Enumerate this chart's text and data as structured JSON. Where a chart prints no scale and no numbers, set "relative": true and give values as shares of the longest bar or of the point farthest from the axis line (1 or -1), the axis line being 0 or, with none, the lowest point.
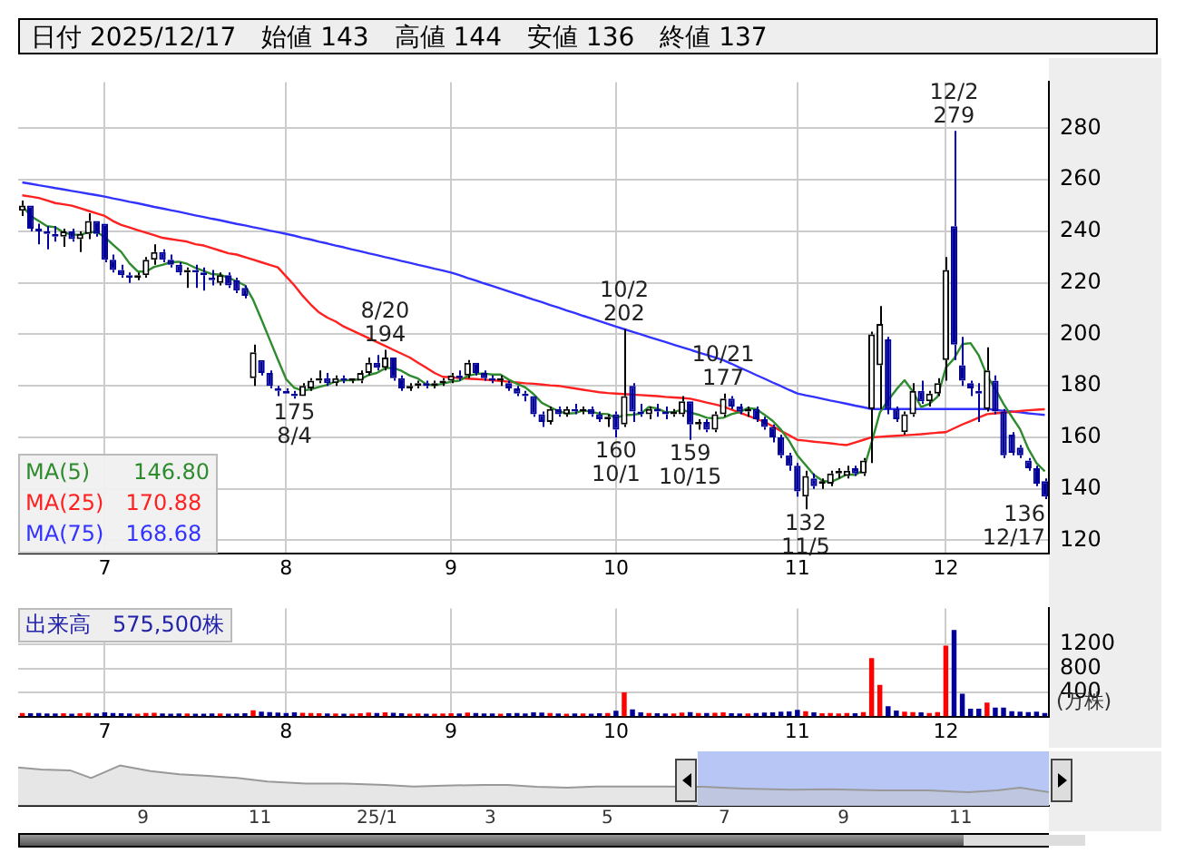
{
  "chart_data": [
    {
      "type": "candlestick",
      "title": "日付 2025/12/17　始値 143　高値 144　安値 136　終値 137",
      "categories": [
        null,
        null,
        null,
        null,
        null,
        null,
        null,
        null,
        null,
        null,
        "7",
        null,
        null,
        null,
        null,
        null,
        null,
        null,
        null,
        null,
        null,
        null,
        null,
        null,
        null,
        null,
        null,
        null,
        null,
        null,
        null,
        null,
        "8",
        null,
        null,
        null,
        null,
        null,
        null,
        null,
        null,
        null,
        null,
        null,
        null,
        null,
        null,
        null,
        null,
        null,
        null,
        null,
        "9",
        null,
        null,
        null,
        null,
        null,
        null,
        null,
        null,
        null,
        null,
        null,
        null,
        null,
        null,
        null,
        null,
        null,
        null,
        null,
        "10",
        null,
        null,
        null,
        null,
        null,
        null,
        null,
        null,
        null,
        null,
        null,
        null,
        null,
        null,
        null,
        null,
        null,
        null,
        null,
        null,
        null,
        "11",
        null,
        null,
        null,
        null,
        null,
        null,
        null,
        null,
        null,
        null,
        null,
        null,
        null,
        null,
        null,
        null,
        null,
        "12",
        null,
        null,
        null,
        null,
        null,
        null,
        null,
        null,
        null,
        null,
        null,
        null
      ],
      "ohlc": [
        [
          248,
          252,
          246,
          250
        ],
        [
          250,
          250,
          240,
          241
        ],
        [
          241,
          243,
          235,
          240
        ],
        [
          240,
          242,
          233,
          239
        ],
        [
          239,
          242,
          236,
          238
        ],
        [
          238,
          241,
          234,
          240
        ],
        [
          240,
          241,
          236,
          237
        ],
        [
          237,
          240,
          232,
          239
        ],
        [
          239,
          247,
          237,
          244
        ],
        [
          244,
          244,
          238,
          239
        ],
        [
          243,
          243,
          228,
          229
        ],
        [
          229,
          231,
          224,
          225
        ],
        [
          225,
          227,
          222,
          223
        ],
        [
          223,
          224,
          220,
          222
        ],
        [
          222,
          224,
          221,
          223
        ],
        [
          223,
          230,
          222,
          229
        ],
        [
          229,
          235,
          227,
          232
        ],
        [
          232,
          233,
          228,
          229
        ],
        [
          229,
          231,
          226,
          227
        ],
        [
          227,
          228,
          223,
          224
        ],
        [
          224,
          226,
          218,
          225
        ],
        [
          225,
          227,
          218,
          224
        ],
        [
          224,
          226,
          217,
          223
        ],
        [
          222,
          225,
          219,
          221
        ],
        [
          220,
          224,
          219,
          223
        ],
        [
          223,
          224,
          218,
          219
        ],
        [
          221,
          222,
          216,
          217
        ],
        [
          218,
          219,
          214,
          215
        ],
        [
          183,
          196,
          180,
          193
        ],
        [
          190,
          190,
          184,
          185
        ],
        [
          185,
          186,
          179,
          180
        ],
        [
          179,
          180,
          176,
          178
        ],
        [
          178,
          179,
          177,
          177
        ],
        [
          177,
          178,
          175,
          176
        ],
        [
          176,
          181,
          176,
          180
        ],
        [
          179,
          183,
          178,
          182
        ],
        [
          182,
          186,
          181,
          183
        ],
        [
          183,
          185,
          180,
          181
        ],
        [
          181,
          184,
          180,
          183
        ],
        [
          183,
          184,
          181,
          182
        ],
        [
          182,
          183,
          181,
          183
        ],
        [
          182,
          186,
          181,
          185
        ],
        [
          185,
          191,
          184,
          189
        ],
        [
          189,
          192,
          186,
          187
        ],
        [
          187,
          194,
          186,
          191
        ],
        [
          191,
          191,
          182,
          183
        ],
        [
          183,
          184,
          178,
          179
        ],
        [
          179,
          181,
          178,
          180
        ],
        [
          180,
          182,
          179,
          181
        ],
        [
          181,
          182,
          179,
          180
        ],
        [
          180,
          182,
          179,
          181
        ],
        [
          181,
          183,
          180,
          182
        ],
        [
          182,
          185,
          181,
          184
        ],
        [
          184,
          186,
          182,
          183
        ],
        [
          184,
          190,
          183,
          189
        ],
        [
          189,
          189,
          184,
          185
        ],
        [
          185,
          186,
          182,
          183
        ],
        [
          183,
          184,
          181,
          182
        ],
        [
          182,
          184,
          180,
          183
        ],
        [
          181,
          182,
          178,
          179
        ],
        [
          179,
          180,
          176,
          177
        ],
        [
          177,
          178,
          174,
          176
        ],
        [
          176,
          176,
          168,
          169
        ],
        [
          169,
          170,
          164,
          166
        ],
        [
          166,
          172,
          165,
          171
        ],
        [
          171,
          172,
          168,
          169
        ],
        [
          169,
          172,
          168,
          171
        ],
        [
          171,
          173,
          169,
          170
        ],
        [
          170,
          172,
          169,
          171
        ],
        [
          171,
          172,
          168,
          169
        ],
        [
          169,
          170,
          166,
          167
        ],
        [
          167,
          169,
          164,
          168
        ],
        [
          169,
          170,
          160,
          163
        ],
        [
          165,
          202,
          164,
          176
        ],
        [
          180,
          181,
          166,
          170
        ],
        [
          170,
          173,
          168,
          169
        ],
        [
          169,
          172,
          167,
          171
        ],
        [
          171,
          173,
          168,
          170
        ],
        [
          170,
          172,
          167,
          169
        ],
        [
          169,
          171,
          168,
          170
        ],
        [
          169,
          176,
          168,
          174
        ],
        [
          174,
          174,
          159,
          165
        ],
        [
          165,
          167,
          163,
          166
        ],
        [
          166,
          167,
          162,
          163
        ],
        [
          163,
          170,
          162,
          169
        ],
        [
          169,
          177,
          168,
          175
        ],
        [
          175,
          176,
          171,
          172
        ],
        [
          172,
          173,
          169,
          170
        ],
        [
          170,
          172,
          168,
          171
        ],
        [
          171,
          172,
          166,
          167
        ],
        [
          167,
          168,
          163,
          164
        ],
        [
          164,
          165,
          158,
          160
        ],
        [
          160,
          161,
          152,
          153
        ],
        [
          153,
          154,
          147,
          149
        ],
        [
          149,
          150,
          137,
          139
        ],
        [
          137,
          147,
          132,
          145
        ],
        [
          144,
          146,
          140,
          141
        ],
        [
          142,
          144,
          140,
          143
        ],
        [
          142,
          147,
          141,
          146
        ],
        [
          146,
          148,
          144,
          147
        ],
        [
          145,
          149,
          144,
          147
        ],
        [
          148,
          149,
          145,
          146
        ],
        [
          146,
          152,
          145,
          151
        ],
        [
          171,
          201,
          150,
          200
        ],
        [
          188,
          211,
          171,
          204
        ],
        [
          198,
          199,
          169,
          171
        ],
        [
          171,
          172,
          166,
          167
        ],
        [
          162,
          170,
          161,
          169
        ],
        [
          169,
          181,
          168,
          178
        ],
        [
          178,
          182,
          173,
          174
        ],
        [
          174,
          178,
          172,
          177
        ],
        [
          177,
          183,
          176,
          181
        ],
        [
          190,
          230,
          182,
          225
        ],
        [
          242,
          279,
          190,
          196
        ],
        [
          188,
          199,
          180,
          182
        ],
        [
          181,
          182,
          176,
          179
        ],
        [
          178,
          181,
          166,
          177
        ],
        [
          171,
          195,
          170,
          186
        ],
        [
          182,
          184,
          169,
          170
        ],
        [
          170,
          171,
          152,
          153
        ],
        [
          161,
          162,
          153,
          154
        ],
        [
          156,
          157,
          152,
          153
        ],
        [
          151,
          152,
          147,
          148
        ],
        [
          148,
          149,
          141,
          142
        ],
        [
          143,
          144,
          136,
          137
        ]
      ],
      "series": [
        {
          "name": "MA(5)　　146.80",
          "type": "line",
          "color": "#2e8b2e",
          "values": [
            250,
            246,
            244,
            242,
            241.6,
            239.6,
            238.8,
            238.6,
            239.6,
            239.8,
            237.8,
            234.8,
            232,
            227.6,
            224.4,
            224.4,
            226.2,
            227,
            228,
            228.2,
            227.4,
            225.8,
            224.6,
            223.4,
            223.2,
            222,
            220.6,
            219,
            213.4,
            205.8,
            198,
            190.2,
            182.6,
            179.2,
            178.2,
            178.6,
            179.6,
            180.4,
            181.8,
            182.2,
            182.2,
            182.6,
            184.2,
            185,
            186.8,
            187,
            185.8,
            184,
            182.8,
            180.6,
            180.2,
            180.8,
            181.6,
            182,
            183.8,
            184.6,
            184.8,
            184.4,
            184.4,
            182.4,
            180.8,
            179.4,
            176.8,
            173.4,
            171.8,
            170.2,
            169.2,
            169.4,
            170.4,
            170,
            169.2,
            169,
            167.6,
            168.6,
            168.8,
            169.2,
            171.8,
            171.2,
            169.8,
            169.8,
            170.8,
            169.6,
            168.8,
            167.6,
            167.4,
            167.6,
            169,
            169.8,
            171.4,
            171,
            168.8,
            166.4,
            163,
            158.6,
            153,
            149.2,
            145.4,
            143.2,
            142.6,
            144,
            145.6,
            145.4,
            147.2,
            158,
            169.6,
            174.4,
            178.6,
            182.2,
            177.8,
            171.8,
            173,
            175.8,
            187,
            190.6,
            196.2,
            196.6,
            191.8,
            184,
            178.8,
            173,
            168,
            163.2,
            155.6,
            150,
            146.8
          ]
        },
        {
          "name": "MA(25)　170.88",
          "type": "line",
          "color": "#ff2020",
          "values": [
            254,
            253.5,
            253,
            252,
            251,
            250.5,
            250,
            249,
            248,
            247,
            246,
            244,
            242.5,
            241.5,
            240.5,
            239.5,
            238.5,
            237.5,
            237,
            236.5,
            236,
            235,
            234.5,
            233.5,
            232.5,
            231.5,
            231,
            230,
            229,
            228,
            227,
            226,
            222.5,
            219,
            215,
            211.5,
            208.5,
            206.5,
            205,
            203,
            201.5,
            200,
            198.5,
            197,
            195.5,
            194,
            192.5,
            191,
            189,
            187,
            185,
            183.5,
            183.3,
            183,
            182.8,
            182.6,
            182.4,
            182.2,
            181.9,
            181.6,
            181.3,
            181,
            180.8,
            180.5,
            180.2,
            180,
            179.5,
            179,
            178.5,
            178,
            177.5,
            177.2,
            177,
            176.8,
            176.6,
            176.4,
            176.2,
            176,
            175.7,
            175.5,
            175.3,
            175,
            174.3,
            173.5,
            172.8,
            172,
            170.8,
            169.6,
            168.4,
            167.2,
            166,
            164.3,
            162.5,
            160.8,
            159,
            158.7,
            158.3,
            158,
            157.7,
            157.3,
            157,
            158,
            159,
            160,
            160.2,
            160.4,
            160.6,
            160.8,
            161,
            161.2,
            161.5,
            161.8,
            162,
            163.5,
            165,
            166.3,
            167.7,
            169,
            169.3,
            169.6,
            169.9,
            170.2,
            170.5,
            170.7,
            170.9
          ]
        },
        {
          "name": "MA(75)　168.68",
          "type": "line",
          "color": "#3333ff",
          "values": [
            259,
            258.5,
            257.9,
            257.4,
            256.8,
            256.3,
            255.7,
            255.2,
            254.6,
            254.1,
            253.5,
            252.8,
            252.2,
            251.5,
            250.9,
            250.2,
            249.5,
            248.9,
            248.2,
            247.6,
            246.9,
            246.2,
            245.6,
            244.9,
            244.3,
            243.6,
            242.9,
            242.3,
            241.6,
            241,
            240.3,
            239.7,
            239,
            238.3,
            237.5,
            236.8,
            236,
            235.3,
            234.5,
            233.8,
            233,
            232.3,
            231.5,
            230.8,
            230,
            229.3,
            228.5,
            227.8,
            227,
            226.3,
            225.5,
            224.8,
            224,
            223,
            221.9,
            220.9,
            219.8,
            218.8,
            217.7,
            216.7,
            215.6,
            214.6,
            213.5,
            212.5,
            211.4,
            210.4,
            209.3,
            208.3,
            207.2,
            206.2,
            205.1,
            204.1,
            203,
            202,
            201,
            200,
            199,
            198,
            197,
            196,
            195,
            194,
            193,
            192,
            191,
            190,
            188.6,
            187.1,
            185.7,
            184.2,
            182.8,
            181.3,
            179.9,
            178.4,
            177,
            176.3,
            175.7,
            175,
            174.3,
            173.7,
            173,
            172.3,
            171.7,
            171,
            171,
            171,
            171,
            171,
            171,
            171,
            171,
            171,
            171,
            171,
            171,
            171,
            171,
            171,
            170.7,
            170.3,
            170,
            169.7,
            169.3,
            169,
            168.7
          ]
        }
      ],
      "ylim": [
        115,
        298
      ],
      "yticks": [
        120,
        140,
        160,
        180,
        200,
        220,
        240,
        260,
        280
      ],
      "grid": true,
      "legend": "bottom left",
      "annotations": [
        {
          "text": "175\n8/4",
          "y": 175
        },
        {
          "text": "8/20\n194",
          "y": 194
        },
        {
          "text": "10/2\n202",
          "y": 202
        },
        {
          "text": "160\n10/1",
          "y": 160
        },
        {
          "text": "159\n10/15",
          "y": 159
        },
        {
          "text": "10/21\n177",
          "y": 177
        },
        {
          "text": "132\n11/5",
          "y": 132
        },
        {
          "text": "12/2\n279",
          "y": 279
        },
        "136\n12/17"
      ]
    },
    {
      "type": "bar",
      "title": "出来高　575,500株",
      "ylabel": "(万株)",
      "categories": [
        null,
        null,
        null,
        null,
        null,
        null,
        null,
        null,
        null,
        null,
        "7",
        null,
        null,
        null,
        null,
        null,
        null,
        null,
        null,
        null,
        null,
        null,
        null,
        null,
        null,
        null,
        null,
        null,
        null,
        null,
        null,
        null,
        "8",
        null,
        null,
        null,
        null,
        null,
        null,
        null,
        null,
        null,
        null,
        null,
        null,
        null,
        null,
        null,
        null,
        null,
        null,
        null,
        "9",
        null,
        null,
        null,
        null,
        null,
        null,
        null,
        null,
        null,
        null,
        null,
        null,
        null,
        null,
        null,
        null,
        null,
        null,
        null,
        "10",
        null,
        null,
        null,
        null,
        null,
        null,
        null,
        null,
        null,
        null,
        null,
        null,
        null,
        null,
        null,
        null,
        null,
        null,
        null,
        null,
        null,
        "11",
        null,
        null,
        null,
        null,
        null,
        null,
        null,
        null,
        null,
        null,
        null,
        null,
        null,
        null,
        null,
        null,
        null,
        "12",
        null,
        null,
        null,
        null,
        null,
        null,
        null,
        null,
        null,
        null,
        null,
        null
      ],
      "values": [
        60,
        55,
        58,
        52,
        50,
        56,
        48,
        54,
        62,
        50,
        70,
        58,
        55,
        50,
        48,
        60,
        62,
        50,
        48,
        52,
        50,
        48,
        46,
        50,
        52,
        48,
        50,
        55,
        105,
        80,
        75,
        65,
        60,
        70,
        62,
        58,
        55,
        50,
        52,
        48,
        45,
        55,
        65,
        58,
        70,
        62,
        55,
        48,
        50,
        46,
        48,
        50,
        55,
        50,
        65,
        58,
        52,
        50,
        48,
        55,
        58,
        52,
        70,
        65,
        58,
        50,
        48,
        52,
        50,
        48,
        55,
        60,
        95,
        400,
        120,
        70,
        60,
        55,
        50,
        52,
        65,
        75,
        58,
        60,
        62,
        70,
        55,
        52,
        50,
        58,
        65,
        70,
        80,
        85,
        110,
        90,
        70,
        55,
        60,
        52,
        58,
        55,
        75,
        970,
        525,
        170,
        100,
        80,
        75,
        70,
        60,
        75,
        1180,
        1440,
        380,
        130,
        130,
        230,
        150,
        150,
        90,
        80,
        75,
        80,
        57.55
      ],
      "colors": [
        "#ff0000",
        "#000099",
        "#000099",
        "#000099",
        "#000099",
        "#ff0000",
        "#000099",
        "#ff0000",
        "#ff0000",
        "#000099",
        "#000099",
        "#000099",
        "#000099",
        "#000099",
        "#ff0000",
        "#ff0000",
        "#ff0000",
        "#000099",
        "#000099",
        "#000099",
        "#ff0000",
        "#000099",
        "#000099",
        "#000099",
        "#ff0000",
        "#000099",
        "#000099",
        "#000099",
        "#ff0000",
        "#000099",
        "#000099",
        "#000099",
        "#000099",
        "#000099",
        "#ff0000",
        "#ff0000",
        "#ff0000",
        "#000099",
        "#ff0000",
        "#000099",
        "#ff0000",
        "#ff0000",
        "#ff0000",
        "#000099",
        "#ff0000",
        "#000099",
        "#000099",
        "#ff0000",
        "#ff0000",
        "#000099",
        "#ff0000",
        "#ff0000",
        "#ff0000",
        "#000099",
        "#ff0000",
        "#000099",
        "#000099",
        "#000099",
        "#ff0000",
        "#000099",
        "#000099",
        "#000099",
        "#000099",
        "#000099",
        "#ff0000",
        "#000099",
        "#ff0000",
        "#000099",
        "#ff0000",
        "#000099",
        "#000099",
        "#ff0000",
        "#000099",
        "#ff0000",
        "#000099",
        "#000099",
        "#ff0000",
        "#000099",
        "#000099",
        "#ff0000",
        "#ff0000",
        "#000099",
        "#ff0000",
        "#000099",
        "#ff0000",
        "#ff0000",
        "#000099",
        "#000099",
        "#ff0000",
        "#000099",
        "#000099",
        "#000099",
        "#000099",
        "#000099",
        "#000099",
        "#ff0000",
        "#000099",
        "#ff0000",
        "#ff0000",
        "#ff0000",
        "#ff0000",
        "#000099",
        "#ff0000",
        "#ff0000",
        "#ff0000",
        "#000099",
        "#000099",
        "#ff0000",
        "#ff0000",
        "#000099",
        "#ff0000",
        "#ff0000",
        "#ff0000",
        "#000099",
        "#000099",
        "#000099",
        "#000099",
        "#ff0000",
        "#000099",
        "#000099",
        "#000099",
        "#000099",
        "#000099",
        "#000099",
        "#000099"
      ],
      "ylim": [
        0,
        1800
      ],
      "yticks": [
        400,
        800,
        1200
      ],
      "grid": true
    },
    {
      "type": "area",
      "relative": true,
      "color": "#999999",
      "x": [
        "2024-06-28",
        "2024-07-10",
        "2024-07-25",
        "2024-08-05",
        "2024-08-20",
        "2024-09-05",
        "2024-09-20",
        "2024-10-05",
        "2024-10-20",
        "2024-11-05",
        "2024-11-25",
        "2024-12-15",
        "2025-01-05",
        "2025-01-20",
        "2025-02-05",
        "2025-02-25",
        "2025-03-10",
        "2025-03-25",
        "2025-04-10",
        "2025-04-25",
        "2025-05-15",
        "2025-06-01",
        "2025-06-20",
        "2025-07-10",
        "2025-08-05",
        "2025-08-25",
        "2025-09-20",
        "2025-10-15",
        "2025-11-05",
        "2025-11-20",
        "2025-12-02",
        "2025-12-17"
      ],
      "values": [
        0.95,
        0.9,
        0.88,
        0.69,
        1,
        0.86,
        0.78,
        0.74,
        0.69,
        0.6,
        0.55,
        0.55,
        0.52,
        0.48,
        0.5,
        0.52,
        0.52,
        0.47,
        0.45,
        0.48,
        0.48,
        0.48,
        0.47,
        0.43,
        0.4,
        0.41,
        0.38,
        0.38,
        0.34,
        0.38,
        0.45,
        0.34
      ],
      "xlim": [
        "2024-06-28",
        "2025-12-17"
      ],
      "xticks": [
        {
          "value": "2024-09-01",
          "label": "9"
        },
        {
          "value": "2024-11-01",
          "label": "11"
        },
        {
          "value": "2025-01-01",
          "label": "25/1"
        },
        {
          "value": "2025-03-01",
          "label": "3"
        },
        {
          "value": "2025-05-01",
          "label": "5"
        },
        {
          "value": "2025-07-01",
          "label": "7"
        },
        {
          "value": "2025-09-01",
          "label": "9"
        },
        {
          "value": "2025-11-01",
          "label": "11"
        }
      ],
      "bands": [
        {
          "axis": "x",
          "from": "2025-06-17",
          "to": "2025-12-17",
          "color": "#b8c6f5"
        }
      ]
    }
  ]
}
